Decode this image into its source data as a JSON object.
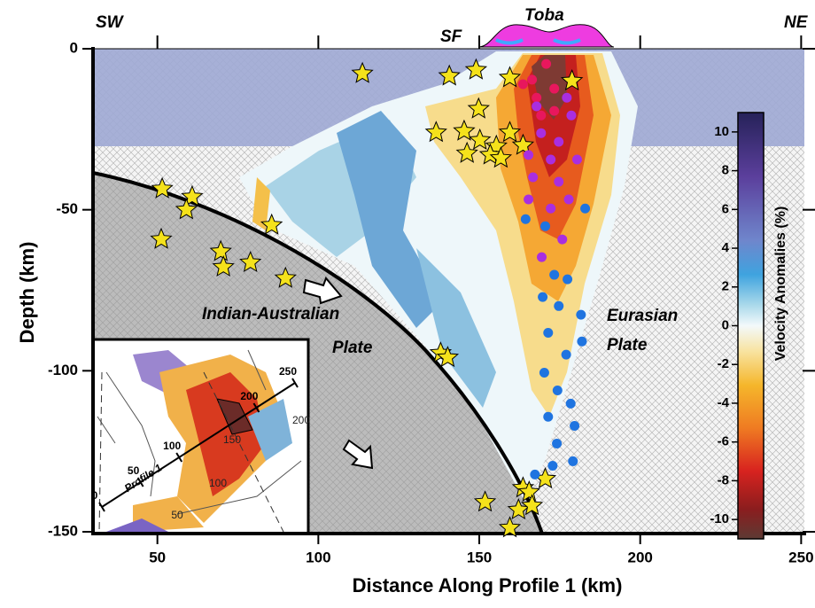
{
  "chart_data": {
    "type": "scatter",
    "xlabel": "Distance Along Profile 1 (km)",
    "ylabel": "Depth (km)",
    "xlim": [
      30,
      251
    ],
    "ylim": [
      -150,
      0
    ],
    "xticks": [
      50,
      100,
      150,
      200,
      250
    ],
    "yticks": [
      0,
      -50,
      -100,
      -150
    ],
    "annotations": [
      "SW",
      "NE",
      "SF",
      "Toba",
      "Indian-Australian",
      "Plate",
      "Eurasian",
      "Plate"
    ],
    "series": [
      {
        "marker": "star",
        "color": "#f5e21b",
        "x": [
          113.7,
          140.7,
          149,
          159.5,
          178.8,
          149.8,
          136.6,
          145.3,
          150.2,
          155.3,
          159.5,
          146.2,
          153.4,
          163.6,
          156.7,
          51.5,
          60.8,
          59,
          85.5,
          51.2,
          69.7,
          70.5,
          78.9,
          89.8,
          138,
          140.2,
          151.8,
          163.6,
          165.5,
          170.5,
          162.2,
          159.5,
          166.4
        ],
        "y": [
          -7.7,
          -8.5,
          -6.6,
          -9,
          -10,
          -18.7,
          -26,
          -25.6,
          -28.4,
          -30.3,
          -26,
          -32.5,
          -33,
          -30,
          -34,
          -43.5,
          -46,
          -50,
          -54.8,
          -59.2,
          -63,
          -67.8,
          -66.4,
          -71.3,
          -94.5,
          -95.9,
          -140.8,
          -136.4,
          -137.7,
          -133.6,
          -143.2,
          -148.8,
          -141.9
        ]
      },
      {
        "marker": "dot",
        "color": "#e8175d",
        "x": [
          170.8,
          166.4,
          173.3,
          167.8,
          173.3,
          169.2,
          163.6
        ],
        "y": [
          -4.7,
          -9.6,
          -12.4,
          -15.2,
          -19.3,
          -20.7,
          -11
        ]
      },
      {
        "marker": "dot",
        "color": "#a92ee0",
        "x": [
          167.8,
          177.2,
          178.6,
          169.2,
          174.7,
          165.3,
          172.2,
          180.4,
          166.7,
          174.7,
          165.3,
          172.2,
          177.8,
          169.4,
          175.8
        ],
        "y": [
          -17.9,
          -15.2,
          -20.7,
          -26.2,
          -28.9,
          -33,
          -34.4,
          -34.4,
          -39.9,
          -41.3,
          -46.8,
          -49.6,
          -46.8,
          -64.7,
          -59.2
        ]
      },
      {
        "marker": "dot",
        "color": "#1f74e0",
        "x": [
          164.4,
          170.5,
          182.9,
          173.3,
          177.4,
          169.7,
          174.7,
          181.6,
          171.4,
          181.9,
          177,
          170.2,
          174.3,
          178.4,
          171.4,
          179.6,
          174.1,
          179.1,
          172.8,
          167.3
        ],
        "y": [
          -52.9,
          -55.1,
          -49.6,
          -70.2,
          -71.6,
          -77.1,
          -79.9,
          -82.6,
          -88.2,
          -90.9,
          -95,
          -100.6,
          -106.1,
          -110.2,
          -114.3,
          -117.1,
          -122.6,
          -128.1,
          -129.5,
          -132.2
        ]
      }
    ],
    "colorbar": {
      "label": "Velocity Anomalies (%)",
      "lim": [
        -11,
        11
      ],
      "ticks": [
        10,
        8,
        6,
        4,
        2,
        0,
        -2,
        -4,
        -6,
        -8,
        -10
      ]
    },
    "inset": {
      "profile_label": "Profile 1",
      "profile_ticks": [
        0,
        50,
        100,
        200,
        250
      ],
      "profile_length": 250,
      "contour_labels": [
        150,
        200,
        100,
        50
      ]
    }
  }
}
